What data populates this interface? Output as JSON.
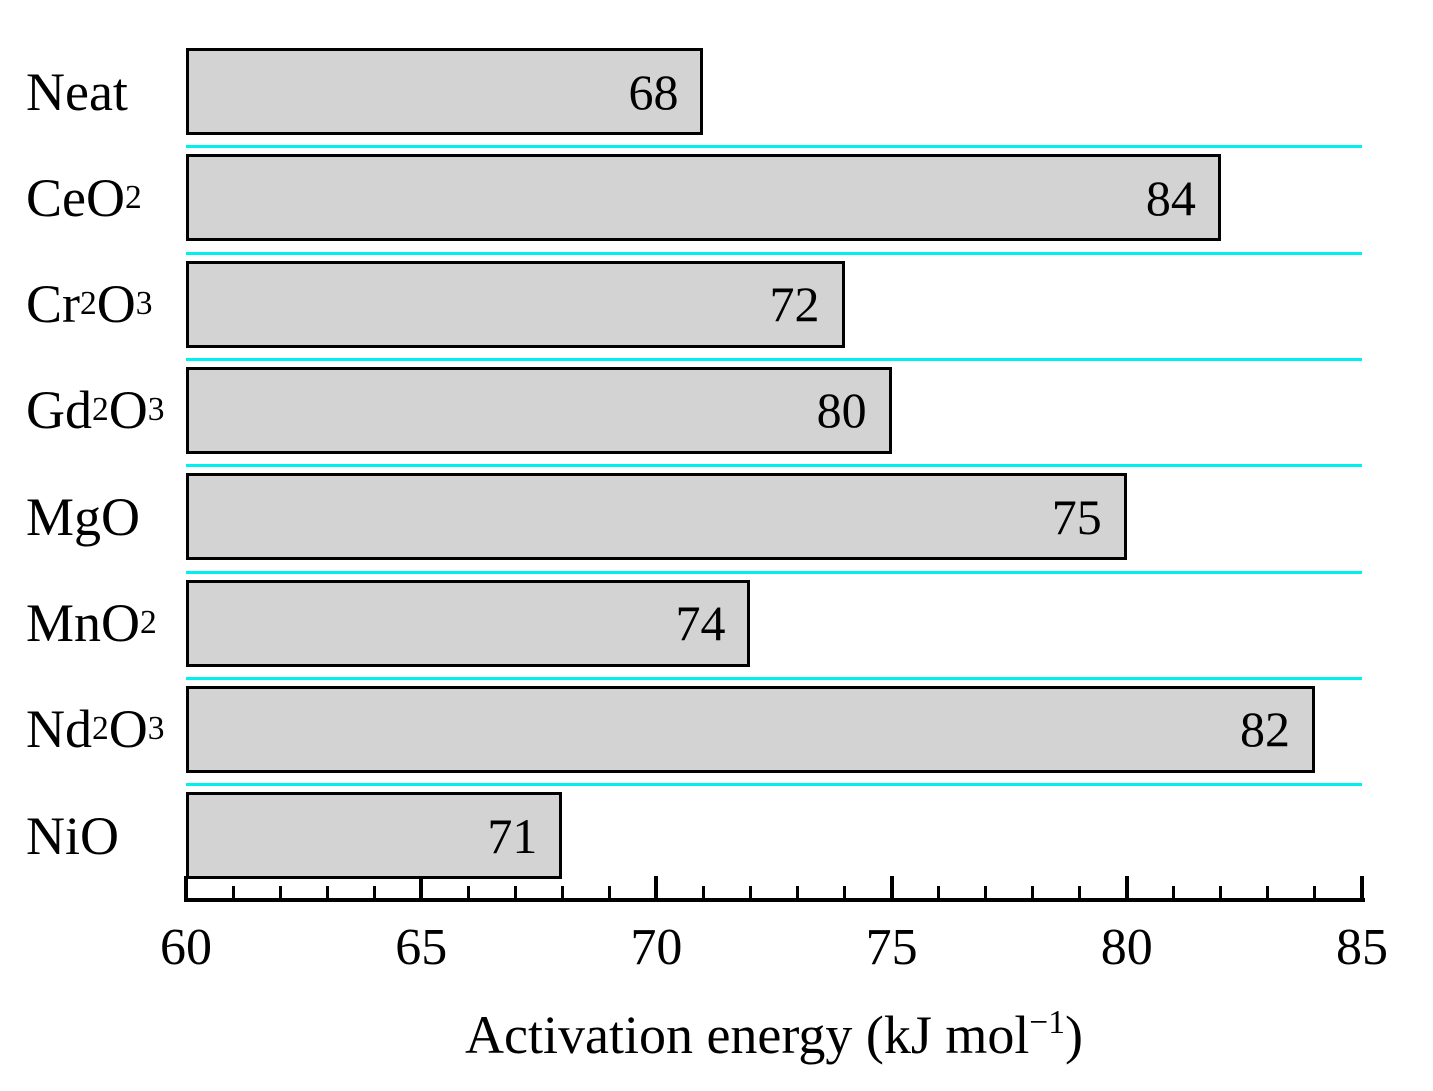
{
  "chart_data": {
    "type": "bar",
    "orientation": "horizontal",
    "xlabel": "Activation energy (kJ mol⁻¹)",
    "xlabel_segments": [
      {
        "text": "Activation energy (kJ mol"
      },
      {
        "text": "−1",
        "sup": true
      },
      {
        "text": ")"
      }
    ],
    "x_axis": {
      "min": 60,
      "max": 85,
      "major_ticks": [
        60,
        65,
        70,
        75,
        80,
        85
      ],
      "minor_tick_interval": 1
    },
    "categories": [
      "Neat",
      "CeO2",
      "Cr2O3",
      "Gd2O3",
      "MgO",
      "MnO2",
      "Nd2O3",
      "NiO"
    ],
    "category_label_segments": [
      [
        {
          "text": "Neat"
        }
      ],
      [
        {
          "text": "CeO"
        },
        {
          "text": "2",
          "sub": true
        }
      ],
      [
        {
          "text": "Cr"
        },
        {
          "text": "2",
          "sub": true
        },
        {
          "text": "O"
        },
        {
          "text": "3",
          "sub": true
        }
      ],
      [
        {
          "text": "Gd"
        },
        {
          "text": "2",
          "sub": true
        },
        {
          "text": "O"
        },
        {
          "text": "3",
          "sub": true
        }
      ],
      [
        {
          "text": "MgO"
        }
      ],
      [
        {
          "text": "MnO"
        },
        {
          "text": "2",
          "sub": true
        }
      ],
      [
        {
          "text": "Nd"
        },
        {
          "text": "2",
          "sub": true
        },
        {
          "text": "O"
        },
        {
          "text": "3",
          "sub": true
        }
      ],
      [
        {
          "text": "NiO"
        }
      ]
    ],
    "bar_value_labels": [
      "68",
      "84",
      "72",
      "80",
      "75",
      "74",
      "82",
      "71"
    ],
    "bar_end_values": [
      71,
      82,
      74,
      75,
      80,
      72,
      84,
      68
    ],
    "grid": "cyan separator line between each category row",
    "legend": "none",
    "colors": {
      "bar_fill": "#d3d3d3",
      "bar_border": "#000000",
      "row_separator": "#00f0f0",
      "axis": "#000000",
      "text": "#000000",
      "background": "#ffffff"
    }
  }
}
